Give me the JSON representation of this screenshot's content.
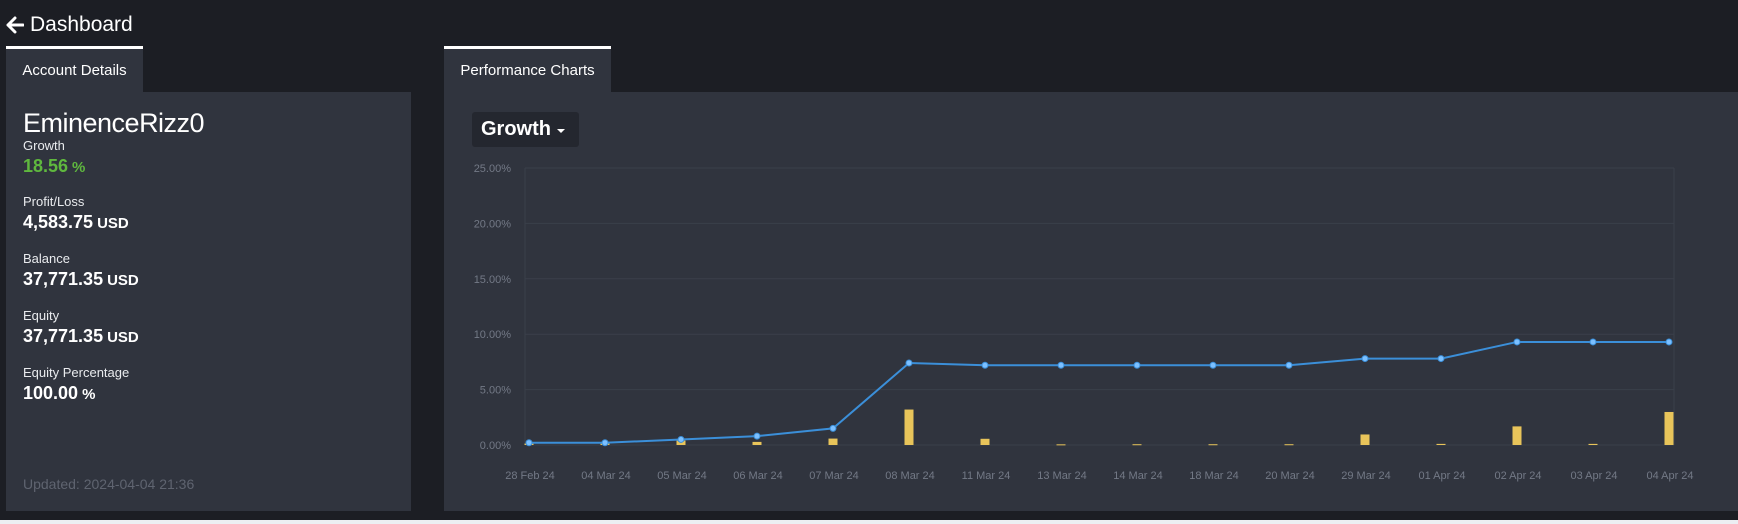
{
  "header": {
    "back_label": "Dashboard"
  },
  "tabs": {
    "account": "Account Details",
    "performance": "Performance Charts"
  },
  "account": {
    "name": "EminenceRizz0",
    "metrics": [
      {
        "label": "Growth",
        "value": "18.56",
        "unit": "%"
      },
      {
        "label": "Profit/Loss",
        "value": "4,583.75",
        "unit": "USD"
      },
      {
        "label": "Balance",
        "value": "37,771.35",
        "unit": "USD"
      },
      {
        "label": "Equity",
        "value": "37,771.35",
        "unit": "USD"
      },
      {
        "label": "Equity Percentage",
        "value": "100.00",
        "unit": "%"
      }
    ],
    "updated": "Updated: 2024-04-04 21:36"
  },
  "performance": {
    "selector_label": "Growth"
  },
  "colors": {
    "line": "#3b8fd9",
    "bars": "#e8c45a",
    "growth_value": "#5fb83e"
  },
  "chart_data": {
    "type": "line",
    "categories": [
      "28 Feb 24",
      "04 Mar 24",
      "05 Mar 24",
      "06 Mar 24",
      "07 Mar 24",
      "08 Mar 24",
      "11 Mar 24",
      "13 Mar 24",
      "14 Mar 24",
      "18 Mar 24",
      "20 Mar 24",
      "29 Mar 24",
      "01 Apr 24",
      "02 Apr 24",
      "03 Apr 24",
      "04 Apr 24"
    ],
    "y_ticks": [
      "0.00%",
      "5.00%",
      "10.00%",
      "15.00%",
      "20.00%",
      "25.00%"
    ],
    "ylim": [
      0,
      25
    ],
    "grid": true,
    "series": [
      {
        "type": "line",
        "values": [
          0.2,
          0.2,
          0.5,
          0.8,
          1.5,
          7.4,
          7.2,
          7.2,
          7.2,
          7.2,
          7.2,
          7.8,
          7.8,
          9.3,
          9.3,
          9.3
        ]
      },
      {
        "type": "bar",
        "values": [
          0.13,
          0.24,
          0.4,
          0.28,
          0.58,
          3.2,
          0.56,
          0.06,
          0.07,
          0.07,
          0.07,
          0.95,
          0.1,
          1.68,
          0.1,
          2.98
        ]
      }
    ]
  }
}
